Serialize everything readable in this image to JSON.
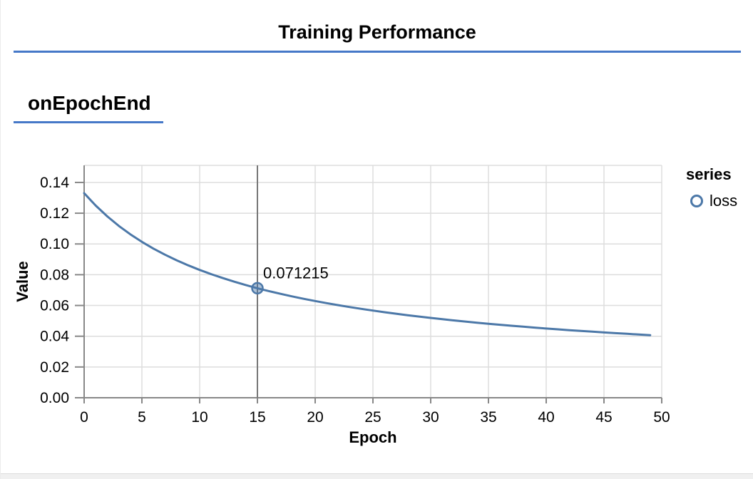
{
  "header": {
    "title": "Training Performance"
  },
  "section": {
    "title": "onEpochEnd"
  },
  "colors": {
    "accent_blue": "#4678c8",
    "series_blue": "#4c78a8",
    "grid": "#dddddd",
    "axis": "#888888",
    "crosshair": "#787878",
    "text": "#000000",
    "bottom_bar": "#f0f0f0"
  },
  "chart_data": {
    "type": "line",
    "title": "",
    "xlabel": "Epoch",
    "ylabel": "Value",
    "xlim": [
      0,
      50
    ],
    "ylim": [
      0,
      0.1511
    ],
    "xticks": [
      0,
      5,
      10,
      15,
      20,
      25,
      30,
      35,
      40,
      45,
      50
    ],
    "yticks": [
      0,
      0.02,
      0.04,
      0.06,
      0.08,
      0.1,
      0.12,
      0.14
    ],
    "ytick_decimals": 2,
    "grid": true,
    "legend_position": "right",
    "legend": {
      "title": "series",
      "items": [
        {
          "label": "loss",
          "marker": "open-circle",
          "color": "#4c78a8"
        }
      ]
    },
    "series": [
      {
        "name": "loss",
        "color": "#4c78a8",
        "x_start": 0,
        "values": [
          0.133033,
          0.124966,
          0.117939,
          0.111757,
          0.106275,
          0.101381,
          0.096985,
          0.093015,
          0.089411,
          0.086126,
          0.083118,
          0.080355,
          0.077807,
          0.07545,
          0.073264,
          0.071215,
          0.069334,
          0.067561,
          0.065901,
          0.064342,
          0.062875,
          0.061494,
          0.060189,
          0.058956,
          0.057789,
          0.056682,
          0.055631,
          0.054631,
          0.053679,
          0.052773,
          0.051907,
          0.05108,
          0.05029,
          0.049534,
          0.048809,
          0.048114,
          0.047447,
          0.046807,
          0.046191,
          0.045598,
          0.045028,
          0.044478,
          0.043948,
          0.043438,
          0.042945,
          0.042468,
          0.042008,
          0.041563,
          0.041132,
          0.040715
        ]
      }
    ],
    "highlight": {
      "epoch": 15,
      "value": 0.071215,
      "label": "0.071215"
    }
  }
}
